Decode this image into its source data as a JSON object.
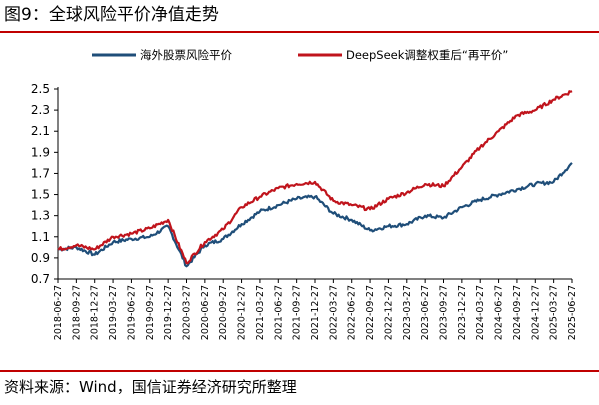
{
  "header": {
    "title": "图9：全球风险平价净值走势"
  },
  "footer": {
    "source": "资料来源：Wind，国信证券经济研究所整理"
  },
  "chart_data": {
    "type": "line",
    "title": "",
    "xlabel": "",
    "ylabel": "",
    "ylim": [
      0.7,
      2.5
    ],
    "yticks": [
      "0.7",
      "0.9",
      "1.1",
      "1.3",
      "1.5",
      "1.7",
      "1.9",
      "2.1",
      "2.3",
      "2.5"
    ],
    "grid": false,
    "legend_position": "top",
    "x": [
      "2018-06-27",
      "2018-09-27",
      "2018-12-27",
      "2019-03-27",
      "2019-06-27",
      "2019-09-27",
      "2019-12-27",
      "2020-03-27",
      "2020-06-27",
      "2020-09-27",
      "2020-12-27",
      "2021-03-27",
      "2021-06-27",
      "2021-09-27",
      "2021-12-27",
      "2022-03-27",
      "2022-06-27",
      "2022-09-27",
      "2022-12-27",
      "2023-03-27",
      "2023-06-27",
      "2023-09-27",
      "2023-12-27",
      "2024-03-27",
      "2024-06-27",
      "2024-09-27",
      "2024-12-27",
      "2025-03-27",
      "2025-06-27"
    ],
    "series": [
      {
        "name": "海外股票风险平价",
        "color": "#1f4e79",
        "values": [
          0.98,
          1.0,
          0.93,
          1.05,
          1.08,
          1.1,
          1.2,
          0.82,
          1.02,
          1.08,
          1.22,
          1.34,
          1.4,
          1.46,
          1.48,
          1.32,
          1.26,
          1.16,
          1.2,
          1.22,
          1.3,
          1.28,
          1.38,
          1.45,
          1.5,
          1.55,
          1.6,
          1.62,
          1.8
        ]
      },
      {
        "name": "DeepSeek调整权重后“再平价”",
        "color": "#c0141c",
        "values": [
          0.98,
          1.02,
          0.98,
          1.1,
          1.13,
          1.18,
          1.26,
          0.85,
          1.05,
          1.17,
          1.38,
          1.48,
          1.56,
          1.6,
          1.62,
          1.44,
          1.4,
          1.36,
          1.46,
          1.52,
          1.6,
          1.58,
          1.76,
          1.95,
          2.1,
          2.25,
          2.3,
          2.4,
          2.48
        ]
      }
    ]
  }
}
